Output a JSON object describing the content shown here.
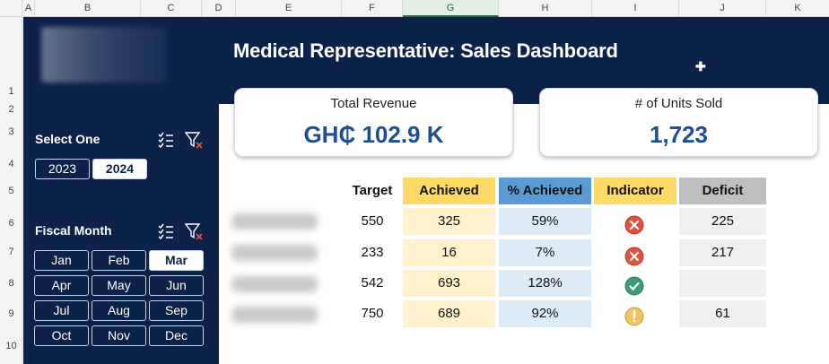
{
  "grid": {
    "columns": [
      "A",
      "B",
      "C",
      "D",
      "E",
      "F",
      "G",
      "H",
      "I",
      "J",
      "K"
    ],
    "rows": [
      "1",
      "2",
      "3",
      "4",
      "5",
      "6",
      "7",
      "8",
      "9",
      "10"
    ]
  },
  "dashboard": {
    "title": "Medical Representative: Sales Dashboard",
    "kpis": [
      {
        "label": "Total Revenue",
        "value": "GH₵ 102.9 K"
      },
      {
        "label": "# of Units Sold",
        "value": "1,723"
      }
    ]
  },
  "slicer_year": {
    "title": "Select One",
    "options": [
      "2023",
      "2024"
    ],
    "selected": "2024"
  },
  "slicer_month": {
    "title": "Fiscal Month",
    "options": [
      "Jan",
      "Feb",
      "Mar",
      "Apr",
      "May",
      "Jun",
      "Jul",
      "Aug",
      "Sep",
      "Oct",
      "Nov",
      "Dec"
    ],
    "selected": "Mar"
  },
  "table": {
    "headers": [
      "Target",
      "Achieved",
      "% Achieved",
      "Indicator",
      "Deficit"
    ],
    "rows": [
      {
        "target": "550",
        "achieved": "325",
        "pct": "59%",
        "indicator": "cross",
        "deficit": "225"
      },
      {
        "target": "233",
        "achieved": "16",
        "pct": "7%",
        "indicator": "cross",
        "deficit": "217"
      },
      {
        "target": "542",
        "achieved": "693",
        "pct": "128%",
        "indicator": "check",
        "deficit": ""
      },
      {
        "target": "750",
        "achieved": "689",
        "pct": "92%",
        "indicator": "warning",
        "deficit": "61"
      }
    ]
  },
  "colors": {
    "navy": "#0d2249",
    "kpi_value": "#1f4e93",
    "achieved_header": "#ffd966",
    "achieved_cell": "#fff2cc",
    "pct_header": "#5b9bd5",
    "pct_cell": "#ddebf7",
    "indicator_header": "#ffd966",
    "deficit_header": "#bfbfbf",
    "deficit_cell": "#efefef",
    "cross": "#e0513f",
    "check": "#3f9a78",
    "warning": "#f2c463"
  }
}
